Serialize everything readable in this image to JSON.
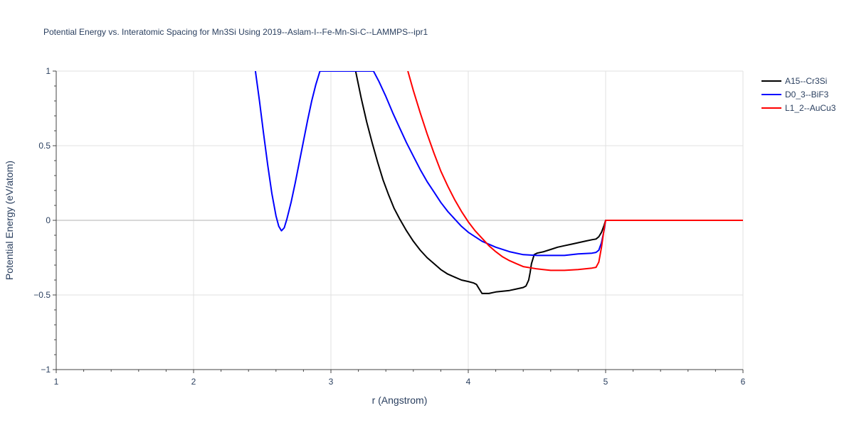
{
  "chart_data": {
    "type": "line",
    "title": "Potential Energy vs. Interatomic Spacing for Mn3Si Using 2019--Aslam-I--Fe-Mn-Si-C--LAMMPS--ipr1",
    "xlabel": "r (Angstrom)",
    "ylabel": "Potential Energy (eV/atom)",
    "xlim": [
      1,
      6
    ],
    "ylim": [
      -1,
      1
    ],
    "xticks": [
      1,
      2,
      3,
      4,
      5,
      6
    ],
    "xtick_labels": [
      "1",
      "2",
      "3",
      "4",
      "5",
      "6"
    ],
    "yticks": [
      -1,
      -0.5,
      0,
      0.5,
      1
    ],
    "ytick_labels": [
      "−1",
      "−0.5",
      "0",
      "0.5",
      "1"
    ],
    "grid": true,
    "legend_position": "top-right outside",
    "series": [
      {
        "name": "A15--Cr3Si",
        "color": "#000000",
        "x": [
          3.18,
          3.22,
          3.26,
          3.3,
          3.34,
          3.38,
          3.42,
          3.46,
          3.5,
          3.55,
          3.6,
          3.65,
          3.7,
          3.75,
          3.8,
          3.85,
          3.9,
          3.95,
          4.0,
          4.04,
          4.06,
          4.08,
          4.1,
          4.15,
          4.2,
          4.25,
          4.3,
          4.35,
          4.4,
          4.42,
          4.44,
          4.45,
          4.46,
          4.48,
          4.5,
          4.55,
          4.6,
          4.65,
          4.7,
          4.75,
          4.8,
          4.85,
          4.9,
          4.93,
          4.95,
          4.97,
          4.99,
          5.0,
          5.2,
          5.4,
          5.6,
          5.8,
          6.0
        ],
        "y": [
          1.0,
          0.82,
          0.66,
          0.52,
          0.39,
          0.27,
          0.17,
          0.08,
          0.01,
          -0.07,
          -0.14,
          -0.2,
          -0.25,
          -0.29,
          -0.33,
          -0.36,
          -0.38,
          -0.4,
          -0.41,
          -0.42,
          -0.43,
          -0.46,
          -0.49,
          -0.49,
          -0.48,
          -0.475,
          -0.47,
          -0.46,
          -0.45,
          -0.44,
          -0.4,
          -0.35,
          -0.29,
          -0.23,
          -0.22,
          -0.21,
          -0.195,
          -0.18,
          -0.17,
          -0.16,
          -0.15,
          -0.14,
          -0.13,
          -0.125,
          -0.11,
          -0.08,
          -0.03,
          0.0,
          0.0,
          0.0,
          0.0,
          0.0,
          0.0
        ]
      },
      {
        "name": "D0_3--BiF3",
        "color": "#0000ff",
        "x": [
          2.45,
          2.48,
          2.51,
          2.54,
          2.57,
          2.6,
          2.62,
          2.64,
          2.66,
          2.68,
          2.71,
          2.74,
          2.77,
          2.8,
          2.83,
          2.86,
          2.89,
          2.92,
          3.31,
          3.35,
          3.4,
          3.45,
          3.5,
          3.55,
          3.6,
          3.65,
          3.7,
          3.75,
          3.8,
          3.85,
          3.9,
          3.95,
          4.0,
          4.1,
          4.2,
          4.3,
          4.4,
          4.5,
          4.6,
          4.7,
          4.8,
          4.9,
          4.93,
          4.95,
          4.97,
          4.99,
          5.0,
          5.2,
          5.4,
          5.6,
          5.8,
          6.0
        ],
        "y": [
          1.0,
          0.8,
          0.58,
          0.37,
          0.18,
          0.03,
          -0.04,
          -0.07,
          -0.05,
          0.01,
          0.12,
          0.25,
          0.39,
          0.53,
          0.67,
          0.8,
          0.91,
          1.0,
          1.0,
          0.93,
          0.83,
          0.72,
          0.62,
          0.52,
          0.43,
          0.34,
          0.26,
          0.19,
          0.12,
          0.06,
          0.01,
          -0.04,
          -0.08,
          -0.14,
          -0.18,
          -0.21,
          -0.23,
          -0.235,
          -0.235,
          -0.235,
          -0.225,
          -0.22,
          -0.215,
          -0.2,
          -0.15,
          -0.06,
          0.0,
          0.0,
          0.0,
          0.0,
          0.0,
          0.0
        ]
      },
      {
        "name": "L1_2--AuCu3",
        "color": "#ff0000",
        "x": [
          3.56,
          3.6,
          3.65,
          3.7,
          3.75,
          3.8,
          3.85,
          3.9,
          3.95,
          4.0,
          4.05,
          4.1,
          4.15,
          4.2,
          4.25,
          4.3,
          4.35,
          4.4,
          4.5,
          4.6,
          4.7,
          4.8,
          4.9,
          4.93,
          4.95,
          4.97,
          4.99,
          5.0,
          5.2,
          5.4,
          5.6,
          5.8,
          6.0
        ],
        "y": [
          1.0,
          0.87,
          0.72,
          0.58,
          0.45,
          0.33,
          0.23,
          0.14,
          0.06,
          -0.01,
          -0.07,
          -0.12,
          -0.17,
          -0.21,
          -0.245,
          -0.27,
          -0.29,
          -0.31,
          -0.325,
          -0.335,
          -0.335,
          -0.33,
          -0.32,
          -0.315,
          -0.28,
          -0.18,
          -0.05,
          0.0,
          0.0,
          0.0,
          0.0,
          0.0,
          0.0
        ]
      }
    ]
  }
}
